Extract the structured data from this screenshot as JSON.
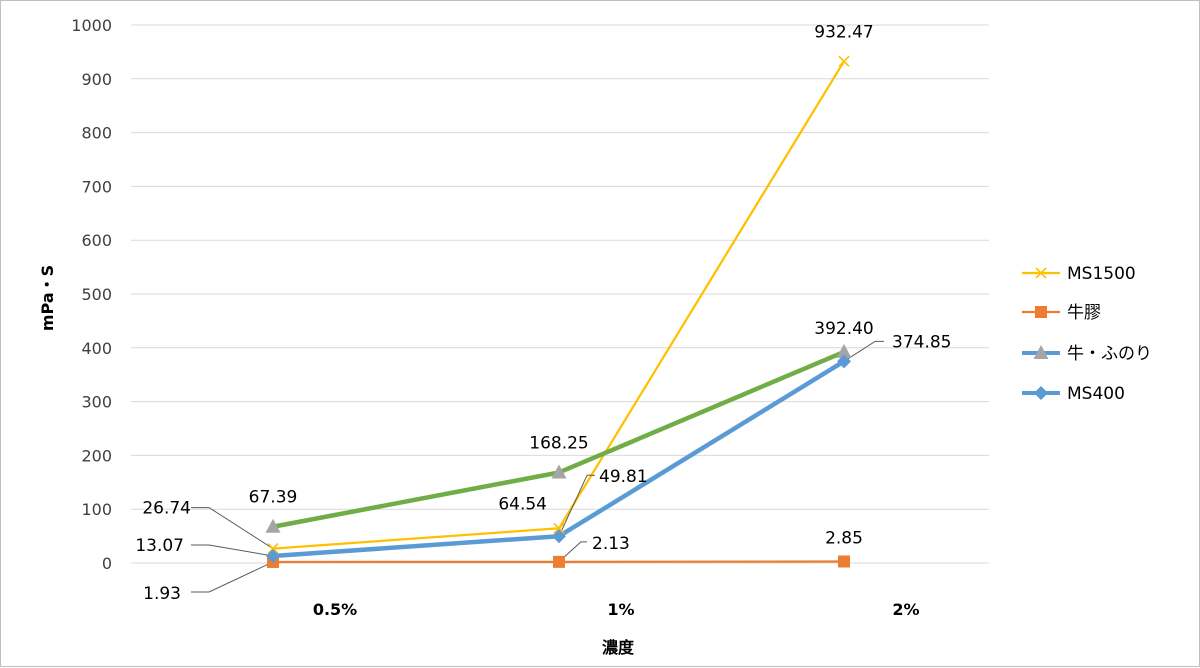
{
  "chart_data": {
    "type": "line",
    "title": "",
    "xlabel": "濃度",
    "ylabel": "mPa・S",
    "categories": [
      "0.5%",
      "1%",
      "2%"
    ],
    "ylim": [
      0,
      1000
    ],
    "yticks": [
      "0",
      "100",
      "200",
      "300",
      "400",
      "500",
      "600",
      "700",
      "800",
      "900",
      "1000"
    ],
    "grid": true,
    "legend_position": "right",
    "series": [
      {
        "name": "MS1500",
        "values": [
          26.74,
          64.54,
          932.47
        ],
        "labels": [
          "26.74",
          "64.54",
          "932.47"
        ],
        "color": "#ffc000",
        "marker": "x"
      },
      {
        "name": "牛膠",
        "values": [
          1.93,
          2.13,
          2.85
        ],
        "labels": [
          "1.93",
          "2.13",
          "2.85"
        ],
        "color": "#ed7d31",
        "marker": "square"
      },
      {
        "name": "牛・ふのり",
        "values": [
          67.39,
          168.25,
          392.4
        ],
        "labels": [
          "67.39",
          "168.25",
          "392.40"
        ],
        "color": "#70ad47",
        "marker": "triangle",
        "marker_color": "#a5a5a5",
        "legend_color": "#5b9bd5"
      },
      {
        "name": "MS400",
        "values": [
          13.07,
          49.81,
          374.85
        ],
        "labels": [
          "13.07",
          "49.81",
          "374.85"
        ],
        "color": "#5b9bd5",
        "marker": "diamond"
      }
    ]
  }
}
